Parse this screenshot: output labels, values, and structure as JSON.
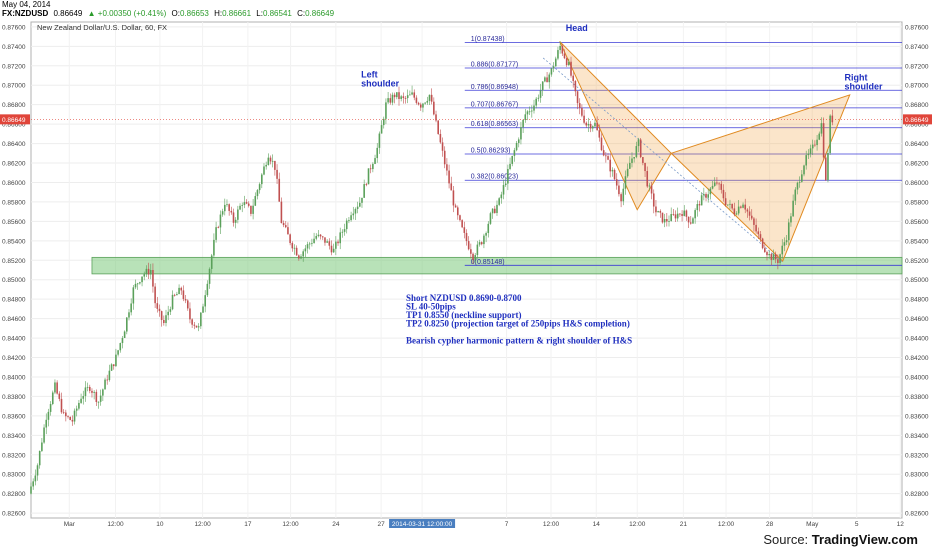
{
  "header": {
    "date": "May 04, 2014",
    "symbol": "FX:NZDUSD",
    "last": "0.86649",
    "change": "+0.00350 (+0.41%)",
    "o_label": "O:",
    "o": "0.86653",
    "h_label": "H:",
    "h": "0.86661",
    "l_label": "L:",
    "l": "0.86541",
    "c_label": "C:",
    "c": "0.86649"
  },
  "footer": {
    "source_label": "Source:",
    "brand": "TradingView.com"
  },
  "colors": {
    "up": "#5aa05a",
    "down": "#c05050",
    "fib": "#3b3bd6",
    "support": "#7ecb7e",
    "pattern": "#f0a040",
    "price_tag": "#e0453a"
  },
  "chart_data": {
    "type": "candlestick",
    "title": "New Zealand Dollar/U.S. Dollar, 60, FX",
    "ylim": [
      0.8255,
      0.8765
    ],
    "y_ticks": [
      "0.87600",
      "0.87400",
      "0.87200",
      "0.87000",
      "0.86800",
      "0.86600",
      "0.86400",
      "0.86200",
      "0.86000",
      "0.85800",
      "0.85600",
      "0.85400",
      "0.85200",
      "0.85000",
      "0.84800",
      "0.84600",
      "0.84400",
      "0.84200",
      "0.84000",
      "0.83800",
      "0.83600",
      "0.83400",
      "0.83200",
      "0.83000",
      "0.82800",
      "0.82600"
    ],
    "x_range": [
      0,
      100
    ],
    "x_ticks": [
      {
        "x": 4.4,
        "label": "Mar"
      },
      {
        "x": 9.7,
        "label": "12:00"
      },
      {
        "x": 14.8,
        "label": "10"
      },
      {
        "x": 19.7,
        "label": "12:00"
      },
      {
        "x": 24.9,
        "label": "17"
      },
      {
        "x": 29.8,
        "label": "12:00"
      },
      {
        "x": 35.0,
        "label": "24"
      },
      {
        "x": 40.2,
        "label": "27"
      },
      {
        "x": 44.9,
        "label": "2014-03-31 12:00:00",
        "highlight": true
      },
      {
        "x": 54.6,
        "label": "7"
      },
      {
        "x": 59.7,
        "label": "12:00"
      },
      {
        "x": 64.9,
        "label": "14"
      },
      {
        "x": 69.6,
        "label": "12:00"
      },
      {
        "x": 74.9,
        "label": "21"
      },
      {
        "x": 79.8,
        "label": "12:00"
      },
      {
        "x": 84.8,
        "label": "28"
      },
      {
        "x": 89.7,
        "label": "May"
      },
      {
        "x": 94.8,
        "label": "5"
      },
      {
        "x": 99.8,
        "label": "12"
      }
    ],
    "price_path": [
      [
        0,
        0.828
      ],
      [
        1,
        0.831
      ],
      [
        2,
        0.836
      ],
      [
        3,
        0.839
      ],
      [
        4,
        0.836
      ],
      [
        5,
        0.8355
      ],
      [
        6,
        0.838
      ],
      [
        7,
        0.839
      ],
      [
        8,
        0.8375
      ],
      [
        9,
        0.84
      ],
      [
        10,
        0.842
      ],
      [
        11,
        0.845
      ],
      [
        12,
        0.849
      ],
      [
        13,
        0.8505
      ],
      [
        14,
        0.851
      ],
      [
        14.6,
        0.847
      ],
      [
        15.5,
        0.8455
      ],
      [
        16.5,
        0.848
      ],
      [
        17.5,
        0.849
      ],
      [
        18.5,
        0.846
      ],
      [
        19.5,
        0.845
      ],
      [
        20.5,
        0.85
      ],
      [
        21.5,
        0.855
      ],
      [
        22.5,
        0.858
      ],
      [
        23.5,
        0.856
      ],
      [
        24.5,
        0.858
      ],
      [
        25.5,
        0.857
      ],
      [
        26.5,
        0.86
      ],
      [
        27.5,
        0.863
      ],
      [
        28.3,
        0.8615
      ],
      [
        29,
        0.856
      ],
      [
        30,
        0.854
      ],
      [
        31,
        0.8525
      ],
      [
        32,
        0.8535
      ],
      [
        33,
        0.8545
      ],
      [
        34,
        0.854
      ],
      [
        35,
        0.853
      ],
      [
        36,
        0.855
      ],
      [
        37,
        0.857
      ],
      [
        38,
        0.858
      ],
      [
        39,
        0.861
      ],
      [
        40,
        0.8635
      ],
      [
        41,
        0.868
      ],
      [
        42,
        0.869
      ],
      [
        43,
        0.8685
      ],
      [
        44,
        0.869
      ],
      [
        45,
        0.868
      ],
      [
        46,
        0.869
      ],
      [
        47,
        0.865
      ],
      [
        48,
        0.861
      ],
      [
        49,
        0.857
      ],
      [
        50,
        0.8545
      ],
      [
        51,
        0.8525
      ],
      [
        52,
        0.854
      ],
      [
        53,
        0.8565
      ],
      [
        54,
        0.858
      ],
      [
        55,
        0.861
      ],
      [
        56,
        0.864
      ],
      [
        57,
        0.867
      ],
      [
        58,
        0.868
      ],
      [
        59,
        0.87
      ],
      [
        60,
        0.8715
      ],
      [
        61,
        0.874
      ],
      [
        62,
        0.872
      ],
      [
        63,
        0.868
      ],
      [
        64,
        0.866
      ],
      [
        65,
        0.866
      ],
      [
        66,
        0.863
      ],
      [
        67,
        0.861
      ],
      [
        68,
        0.8585
      ],
      [
        69,
        0.862
      ],
      [
        70,
        0.864
      ],
      [
        71,
        0.86
      ],
      [
        72,
        0.857
      ],
      [
        73,
        0.856
      ],
      [
        74,
        0.8565
      ],
      [
        75,
        0.857
      ],
      [
        76,
        0.856
      ],
      [
        77,
        0.858
      ],
      [
        78,
        0.859
      ],
      [
        79,
        0.86
      ],
      [
        80,
        0.858
      ],
      [
        81,
        0.857
      ],
      [
        82,
        0.858
      ],
      [
        83,
        0.856
      ],
      [
        84,
        0.854
      ],
      [
        85,
        0.8525
      ],
      [
        86,
        0.852
      ],
      [
        87,
        0.8545
      ],
      [
        88,
        0.859
      ],
      [
        89,
        0.862
      ],
      [
        90,
        0.8635
      ],
      [
        91,
        0.866
      ],
      [
        91.5,
        0.86
      ],
      [
        92,
        0.8665
      ]
    ],
    "fib_levels": [
      {
        "ratio_label": "1(0.87438)",
        "price": 0.87438
      },
      {
        "ratio_label": "0.886(0.87177)",
        "price": 0.87177
      },
      {
        "ratio_label": "0.786(0.86948)",
        "price": 0.86948
      },
      {
        "ratio_label": "0.707(0.86767)",
        "price": 0.86767
      },
      {
        "ratio_label": "0.618(0.86563)",
        "price": 0.86563
      },
      {
        "ratio_label": "0.5(0.86293)",
        "price": 0.86293
      },
      {
        "ratio_label": "0.382(0.86023)",
        "price": 0.86023
      },
      {
        "ratio_label": "0(0.85148)",
        "price": 0.85148
      }
    ],
    "fib_x_range": [
      49.8,
      100
    ],
    "support_zone": {
      "x0": 7,
      "x1": 100,
      "y_low": 0.8506,
      "y_high": 0.8523
    },
    "pattern_points": [
      [
        60.7,
        0.8745
      ],
      [
        69.6,
        0.8572
      ],
      [
        73.5,
        0.863
      ],
      [
        86.3,
        0.8519
      ],
      [
        94.0,
        0.869
      ]
    ],
    "trend_line": [
      [
        58.8,
        0.8728
      ],
      [
        86.3,
        0.8518
      ]
    ],
    "current_price": {
      "value": 0.86649,
      "label": "0.86649"
    },
    "annotations": {
      "left_shoulder": {
        "line1": "Left",
        "line2": "shoulder",
        "x": 37.9,
        "y": 0.8708
      },
      "head": {
        "text": "Head",
        "x": 61.4,
        "y": 0.8756
      },
      "right_shoulder": {
        "line1": "Right",
        "line2": "shoulder",
        "x": 93.4,
        "y": 0.8705
      }
    },
    "notes": [
      "Short NZDUSD 0.8690-0.8700",
      "SL 40-50pips",
      "TP1 0.8550 (neckline support)",
      "TP2 0.8250 (projection target of 250pips H&S completion)",
      "",
      "Bearish cypher harmonic pattern & right shoulder of H&S"
    ]
  }
}
